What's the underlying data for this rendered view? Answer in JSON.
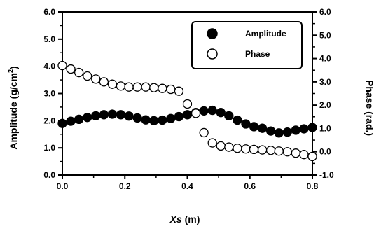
{
  "chart_data": {
    "type": "scatter",
    "xlabel_var": "Xs",
    "xlabel_unit": " (m)",
    "ylabel_left_main": "Amplitude (g/cm",
    "ylabel_left_sup": "2",
    "ylabel_left_end": ")",
    "ylabel_right": "Phase (rad.)",
    "xlim": [
      0.0,
      0.8
    ],
    "ylim_left": [
      0.0,
      6.0
    ],
    "ylim_right": [
      -1.0,
      6.0
    ],
    "x_ticks": [
      "0.0",
      "0.2",
      "0.4",
      "0.6",
      "0.8"
    ],
    "y_left_ticks": [
      "0.0",
      "1.0",
      "2.0",
      "3.0",
      "4.0",
      "5.0",
      "6.0"
    ],
    "y_right_ticks": [
      "-1.0",
      "0.0",
      "1.0",
      "2.0",
      "3.0",
      "4.0",
      "5.0",
      "6.0"
    ],
    "grid": false,
    "legend_position": "top-right",
    "series": [
      {
        "name": "Amplitude",
        "axis": "left",
        "marker": "filled-circle",
        "color": "#000000",
        "x": [
          0.0,
          0.027,
          0.053,
          0.08,
          0.107,
          0.133,
          0.16,
          0.187,
          0.213,
          0.24,
          0.267,
          0.293,
          0.32,
          0.347,
          0.373,
          0.4,
          0.427,
          0.453,
          0.48,
          0.507,
          0.533,
          0.56,
          0.587,
          0.613,
          0.64,
          0.667,
          0.693,
          0.72,
          0.747,
          0.773,
          0.8
        ],
        "y": [
          1.9,
          1.98,
          2.05,
          2.12,
          2.18,
          2.22,
          2.24,
          2.22,
          2.17,
          2.1,
          2.03,
          2.0,
          2.02,
          2.08,
          2.15,
          2.22,
          2.3,
          2.36,
          2.38,
          2.3,
          2.18,
          2.02,
          1.88,
          1.78,
          1.72,
          1.62,
          1.55,
          1.58,
          1.65,
          1.7,
          1.75
        ]
      },
      {
        "name": "Phase",
        "axis": "right",
        "marker": "open-circle",
        "color": "#000000",
        "x": [
          0.0,
          0.027,
          0.053,
          0.08,
          0.107,
          0.133,
          0.16,
          0.187,
          0.213,
          0.24,
          0.267,
          0.293,
          0.32,
          0.347,
          0.373,
          0.4,
          0.427,
          0.453,
          0.48,
          0.507,
          0.533,
          0.56,
          0.587,
          0.613,
          0.64,
          0.667,
          0.693,
          0.72,
          0.747,
          0.773,
          0.8
        ],
        "y": [
          3.7,
          3.55,
          3.4,
          3.25,
          3.12,
          3.0,
          2.9,
          2.82,
          2.78,
          2.78,
          2.78,
          2.75,
          2.72,
          2.68,
          2.6,
          2.05,
          1.65,
          0.82,
          0.38,
          0.25,
          0.2,
          0.15,
          0.12,
          0.1,
          0.08,
          0.06,
          0.03,
          0.0,
          -0.06,
          -0.12,
          -0.2
        ]
      }
    ]
  }
}
